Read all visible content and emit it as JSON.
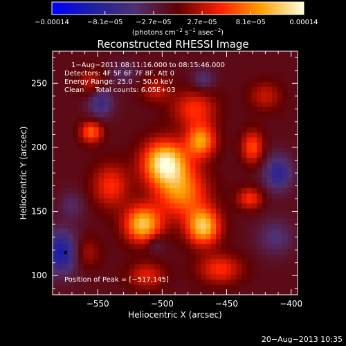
{
  "chart_data": {
    "type": "heatmap",
    "title": "Reconstructed RHESSI Image",
    "xlabel": "Heliocentric X (arcsec)",
    "ylabel": "Heliocentric Y (arcsec)",
    "xlim": [
      -585,
      -395
    ],
    "ylim": [
      85,
      275
    ],
    "x_ticks": [
      -550,
      -500,
      -450,
      -400
    ],
    "y_ticks": [
      100,
      150,
      200,
      250
    ],
    "x_tick_labels": [
      "−550",
      "−500",
      "−450",
      "−400"
    ],
    "y_tick_labels": [
      "100",
      "150",
      "200",
      "250"
    ],
    "colorbar": {
      "range": [
        -0.00014,
        0.00014
      ],
      "tick_values": [
        -0.00014,
        -8.1e-05,
        -2.7e-05,
        2.7e-05,
        8.1e-05,
        0.00014
      ],
      "tick_labels": [
        "−0.00014",
        "−8.1e−05",
        "−2.7e−05",
        "2.7e−05",
        "8.1e−05",
        "0.00014"
      ],
      "units_main": "(photons cm",
      "units_sup1": "−2",
      "units_mid": " s",
      "units_sup2": "−1",
      "units_mid2": " asec",
      "units_sup3": "−2",
      "units_end": ")"
    },
    "info_lines": [
      "1−Aug−2011 08:11:16.000 to 08:15:46.000",
      "Detectors: 4F 5F 6F 7F 8F, Att 0",
      "Energy Range: 25.0 − 50.0 keV",
      "Clean     Total counts: 6.05E+03"
    ],
    "peak_label": "Position of Peak = [−517,145]",
    "peak_marker": {
      "x": -575,
      "y": 118
    },
    "timestamp": "20−Aug−2013 10:35",
    "blobs": [
      {
        "x": -498,
        "y": 188,
        "sx": 12,
        "sy": 12,
        "a": 0.00014
      },
      {
        "x": -515,
        "y": 140,
        "sx": 10,
        "sy": 10,
        "a": 0.00012
      },
      {
        "x": -468,
        "y": 138,
        "sx": 9,
        "sy": 10,
        "a": 0.00012
      },
      {
        "x": -470,
        "y": 205,
        "sx": 8,
        "sy": 9,
        "a": 0.0001
      },
      {
        "x": -485,
        "y": 165,
        "sx": 14,
        "sy": 14,
        "a": 9e-05
      },
      {
        "x": -475,
        "y": 230,
        "sx": 12,
        "sy": 10,
        "a": 6e-05
      },
      {
        "x": -540,
        "y": 170,
        "sx": 10,
        "sy": 12,
        "a": 6e-05
      },
      {
        "x": -505,
        "y": 245,
        "sx": 8,
        "sy": 7,
        "a": 4e-05
      },
      {
        "x": -555,
        "y": 212,
        "sx": 6,
        "sy": 6,
        "a": 8e-05
      },
      {
        "x": -430,
        "y": 200,
        "sx": 6,
        "sy": 9,
        "a": 7e-05
      },
      {
        "x": -432,
        "y": 160,
        "sx": 7,
        "sy": 6,
        "a": 6e-05
      },
      {
        "x": -455,
        "y": 105,
        "sx": 12,
        "sy": 8,
        "a": 6e-05
      },
      {
        "x": -512,
        "y": 100,
        "sx": 10,
        "sy": 7,
        "a": 5e-05
      },
      {
        "x": -560,
        "y": 118,
        "sx": 8,
        "sy": 9,
        "a": 4e-05
      },
      {
        "x": -555,
        "y": 250,
        "sx": 7,
        "sy": 8,
        "a": 4e-05
      },
      {
        "x": -420,
        "y": 240,
        "sx": 9,
        "sy": 8,
        "a": 4e-05
      },
      {
        "x": -578,
        "y": 118,
        "sx": 10,
        "sy": 12,
        "a": -9e-05
      },
      {
        "x": -548,
        "y": 235,
        "sx": 7,
        "sy": 8,
        "a": -6e-05
      },
      {
        "x": -530,
        "y": 258,
        "sx": 8,
        "sy": 6,
        "a": -3e-05
      },
      {
        "x": -410,
        "y": 180,
        "sx": 8,
        "sy": 10,
        "a": -7e-05
      },
      {
        "x": -412,
        "y": 130,
        "sx": 10,
        "sy": 10,
        "a": -4e-05
      },
      {
        "x": -468,
        "y": 253,
        "sx": 6,
        "sy": 6,
        "a": -4e-05
      },
      {
        "x": -570,
        "y": 155,
        "sx": 7,
        "sy": 8,
        "a": -3e-05
      },
      {
        "x": -505,
        "y": 125,
        "sx": 5,
        "sy": 5,
        "a": -3e-05
      }
    ],
    "background": -1e-05
  }
}
